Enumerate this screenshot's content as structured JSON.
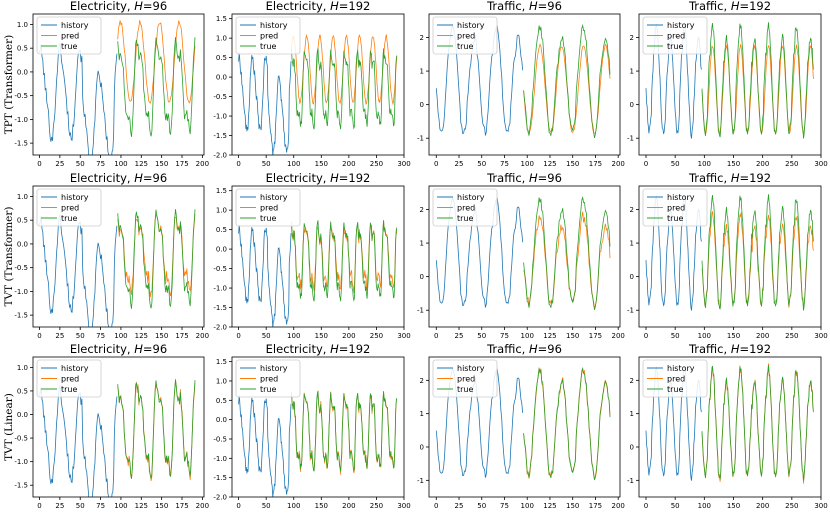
{
  "figure": {
    "row_labels": [
      "TPT (Transformer)",
      "TVT (Transformer)",
      "TVT (Linear)"
    ],
    "col_titles": [
      {
        "prefix": "Electricity, ",
        "italic": "H",
        "suffix": "=96"
      },
      {
        "prefix": "Electricity, ",
        "italic": "H",
        "suffix": "=192"
      },
      {
        "prefix": "Traffic, ",
        "italic": "H",
        "suffix": "=96"
      },
      {
        "prefix": "Traffic, ",
        "italic": "H",
        "suffix": "=192"
      }
    ],
    "legend": [
      "history",
      "pred",
      "true"
    ],
    "colors": {
      "history": "#1f77b4",
      "pred": "#ff7f0e",
      "true": "#2ca02c",
      "axis": "#000000"
    }
  },
  "chart_data": [
    {
      "type": "line",
      "title": "Electricity, H=96",
      "history_length": 96,
      "horizon": 96,
      "xlim": [
        -8,
        202
      ],
      "ylim": [
        -1.75,
        1.22
      ],
      "xticks": [
        0,
        25,
        50,
        75,
        100,
        125,
        150,
        175,
        200
      ],
      "yticks": [
        -1.5,
        -1.0,
        -0.5,
        0.0,
        0.5,
        1.0
      ],
      "series_hint": "history: daily cycles amplitude ~1.0 min -1.7 max 0.6; pred per model (row)"
    },
    {
      "type": "line",
      "title": "Electricity, H=192",
      "history_length": 96,
      "horizon": 192,
      "xlim": [
        -12,
        300
      ],
      "ylim": [
        -2.0,
        1.62
      ],
      "xticks": [
        0,
        50,
        100,
        150,
        200,
        250,
        300
      ],
      "yticks": [
        -2.0,
        -1.5,
        -1.0,
        -0.5,
        0.0,
        0.5,
        1.0,
        1.5
      ]
    },
    {
      "type": "line",
      "title": "Traffic, H=96",
      "history_length": 96,
      "horizon": 96,
      "xlim": [
        -8,
        202
      ],
      "ylim": [
        -1.5,
        2.7
      ],
      "xticks": [
        0,
        25,
        50,
        75,
        100,
        125,
        150,
        175,
        200
      ],
      "yticks": [
        -1,
        0,
        1,
        2
      ]
    },
    {
      "type": "line",
      "title": "Traffic, H=192",
      "history_length": 96,
      "horizon": 192,
      "xlim": [
        -12,
        300
      ],
      "ylim": [
        -1.5,
        2.7
      ],
      "xticks": [
        0,
        50,
        100,
        150,
        200,
        250,
        300
      ],
      "yticks": [
        -1,
        0,
        1,
        2
      ]
    }
  ],
  "row_models": [
    {
      "name": "TPT (Transformer)",
      "pred_quality": "poor"
    },
    {
      "name": "TVT (Transformer)",
      "pred_quality": "fair"
    },
    {
      "name": "TVT (Linear)",
      "pred_quality": "good"
    }
  ]
}
